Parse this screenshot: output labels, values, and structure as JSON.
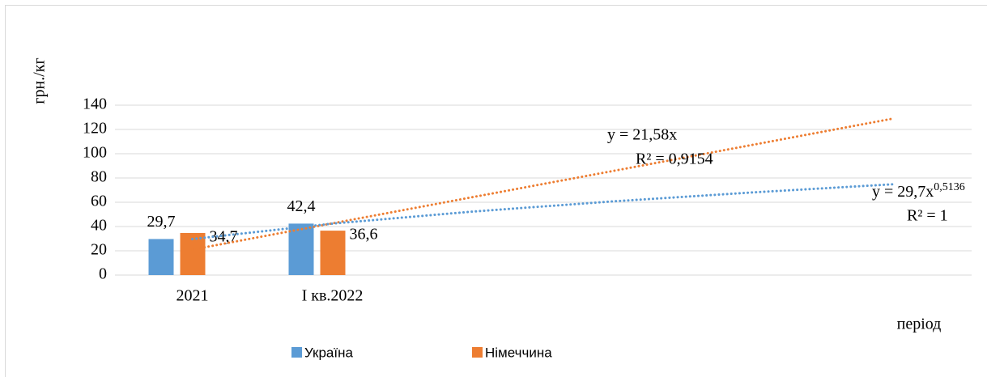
{
  "chart_data": {
    "type": "bar",
    "y_label": "грн./кг",
    "x_label": "період",
    "categories": [
      "2021",
      "I кв.2022",
      null,
      null,
      null,
      null
    ],
    "series": [
      {
        "name": "Україна",
        "color": "#5b9bd5",
        "values": [
          29.7,
          42.4,
          null,
          null,
          null,
          null
        ],
        "value_labels": [
          "29,7",
          "42,4",
          null,
          null,
          null,
          null
        ]
      },
      {
        "name": "Німеччина",
        "color": "#ed7d31",
        "values": [
          34.7,
          36.6,
          null,
          null,
          null,
          null
        ],
        "value_labels": [
          "34,7",
          "36,6",
          null,
          null,
          null,
          null
        ]
      }
    ],
    "trendlines": [
      {
        "series": 1,
        "color": "#ed7d31",
        "values": [
          21,
          42.6,
          64.2,
          85.7,
          107.3,
          128.9
        ],
        "equation": "y = 21,58x",
        "r2": "R² = 0,9154"
      },
      {
        "series": 0,
        "color": "#5b9bd5",
        "values": [
          29.7,
          42.4,
          52.3,
          60.7,
          68.1,
          74.8
        ],
        "equation": "y = 29,7x",
        "exponent": "0,5136",
        "r2": "R² = 1"
      }
    ],
    "ylim": [
      0,
      140
    ],
    "yticks": [
      0,
      20,
      40,
      60,
      80,
      100,
      120,
      140
    ],
    "grid": true,
    "legend": "bottom"
  }
}
